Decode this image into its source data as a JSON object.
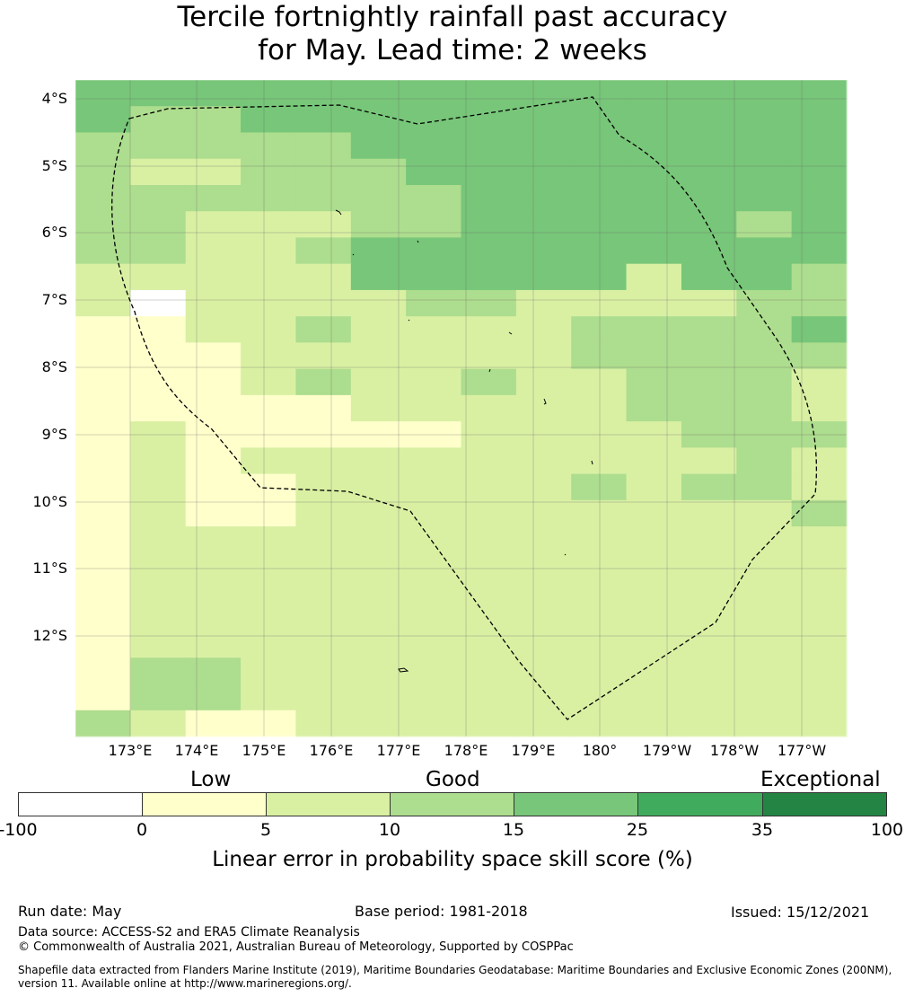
{
  "title": {
    "line1": "Tercile fortnightly rainfall past accuracy",
    "line2": "for May. Lead time: 2 weeks"
  },
  "map": {
    "lat_labels": [
      "4°S",
      "5°S",
      "6°S",
      "7°S",
      "8°S",
      "9°S",
      "10°S",
      "11°S",
      "12°S"
    ],
    "lon_labels": [
      "173°E",
      "174°E",
      "175°E",
      "176°E",
      "177°E",
      "178°E",
      "179°E",
      "180°",
      "179°W",
      "178°W",
      "177°W"
    ],
    "legend_colors": {
      "below_0": "#ffffff",
      "0_5": "#ffffcc",
      "5_10": "#d9f0a3",
      "10_15": "#addd8e",
      "15_25": "#78c679",
      "25_35": "#41ab5d",
      "35_100": "#238443"
    },
    "grid_colors_key": [
      "#ffffff",
      "#ffffcc",
      "#d9f0a3",
      "#addd8e",
      "#78c679"
    ],
    "grid": [
      "44444444444444",
      "43344444444444",
      "33333444444444",
      "32233344444444",
      "33333334444444",
      "33222334444434",
      "33223444444444",
      "22222444442443",
      "20222233222233",
      "11223222233334",
      "11122222233333",
      "11123223223332",
      "11111222223332",
      "12111112222333",
      "12122222222232",
      "12112222232332",
      "12112222222223",
      "12222222222222",
      "12222222222222",
      "12222222222222",
      "12222222222222",
      "12222222222222",
      "13322222222222",
      "13322222222222",
      "32112222222222"
    ]
  },
  "colorbar": {
    "categories": [
      "Low",
      "Good",
      "Exceptional"
    ],
    "ticks": [
      "-100",
      "0",
      "5",
      "10",
      "15",
      "25",
      "35",
      "100"
    ],
    "label": "Linear error in probability space skill score (%)"
  },
  "footer": {
    "run_date": "Run date: May",
    "base_period": "Base period: 1981-2018",
    "issued": "Issued: 15/12/2021",
    "data_source": "Data source: ACCESS-S2 and ERA5 Climate Reanalysis",
    "copyright": "© Commonwealth of Australia 2021, Australian Bureau of Meteorology, Supported by COSPPac",
    "shapefile": "Shapefile data extracted from Flanders Marine Institute (2019), Maritime Boundaries Geodatabase: Maritime Boundaries and Exclusive Economic Zones (200NM), version 11. Available online at http://www.marineregions.org/."
  }
}
